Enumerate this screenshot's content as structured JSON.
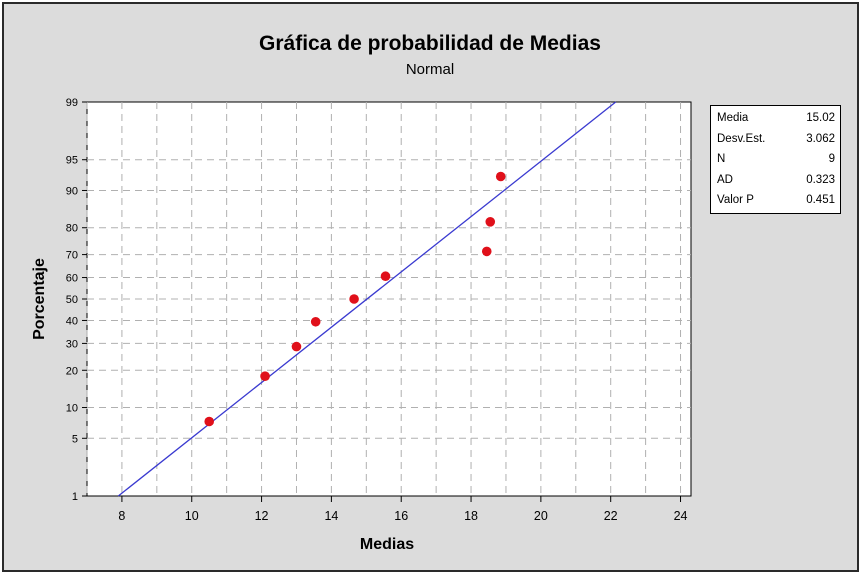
{
  "chart_data": {
    "type": "scatter",
    "title": "Gráfica de probabilidad de Medias",
    "subtitle": "Normal",
    "xlabel": "Medias",
    "ylabel": "Porcentaje",
    "xlim": [
      7,
      24.3
    ],
    "ylim": [
      1,
      99
    ],
    "y_scale": "normal-probability",
    "x_ticks": [
      8,
      10,
      12,
      14,
      16,
      18,
      20,
      22,
      24
    ],
    "y_ticks": [
      1,
      5,
      10,
      20,
      30,
      40,
      50,
      60,
      70,
      80,
      90,
      95,
      99
    ],
    "grid": true,
    "points": [
      {
        "x": 10.5,
        "y": 7.4
      },
      {
        "x": 12.1,
        "y": 18.1
      },
      {
        "x": 13.0,
        "y": 28.7
      },
      {
        "x": 13.55,
        "y": 39.4
      },
      {
        "x": 14.65,
        "y": 50.0
      },
      {
        "x": 15.55,
        "y": 60.6
      },
      {
        "x": 18.45,
        "y": 71.3
      },
      {
        "x": 18.55,
        "y": 81.9
      },
      {
        "x": 18.85,
        "y": 92.6
      }
    ],
    "fit": {
      "mean": 15.02,
      "stdev": 3.062
    },
    "colors": {
      "points": "#e0101a",
      "fit_line": "#3a3ad0",
      "grid": "#b0b0b0",
      "plot_bg": "#ffffff",
      "panel_bg": "#dcdcdc"
    }
  },
  "stats": [
    {
      "label": "Media",
      "value": "15.02"
    },
    {
      "label": "Desv.Est.",
      "value": "3.062"
    },
    {
      "label": "N",
      "value": "9"
    },
    {
      "label": "AD",
      "value": "0.323"
    },
    {
      "label": "Valor P",
      "value": "0.451"
    }
  ]
}
